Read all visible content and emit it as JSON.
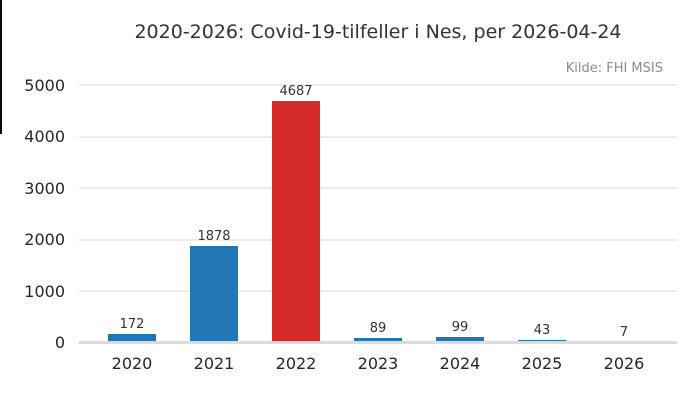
{
  "header": {
    "title": "2020-2026: Covid-19-tilfeller i Nes, per 2026-04-24",
    "source_note": "Kilde: FHI MSIS"
  },
  "chart_data": {
    "type": "bar",
    "title": "2020-2026: Covid-19-tilfeller i Nes, per 2026-04-24",
    "annotation": "Kilde: FHI MSIS",
    "categories": [
      "2020",
      "2021",
      "2022",
      "2023",
      "2024",
      "2025",
      "2026"
    ],
    "values": [
      172,
      1878,
      4687,
      89,
      99,
      43,
      7
    ],
    "value_labels_shown": true,
    "xlabel": "",
    "ylabel": "",
    "ylim": [
      0,
      5000
    ],
    "yticks": [
      0,
      1000,
      2000,
      3000,
      4000,
      5000
    ],
    "grid": "horizontal",
    "legend": "none",
    "bar_colors": [
      "#2077b4",
      "#2077b4",
      "#d62b2b",
      "#2077b4",
      "#2077b4",
      "#2077b4",
      "#2077b4"
    ],
    "colors": {
      "bar_blue": "#2077b4",
      "bar_red": "#d62b2b",
      "gridline": "#ededed",
      "baseline": "#dcdcdc",
      "tick_text": "#262626",
      "title_text": "#333333",
      "source_text": "#8b8b8b",
      "artifact_line": "#0a0a0a"
    }
  }
}
